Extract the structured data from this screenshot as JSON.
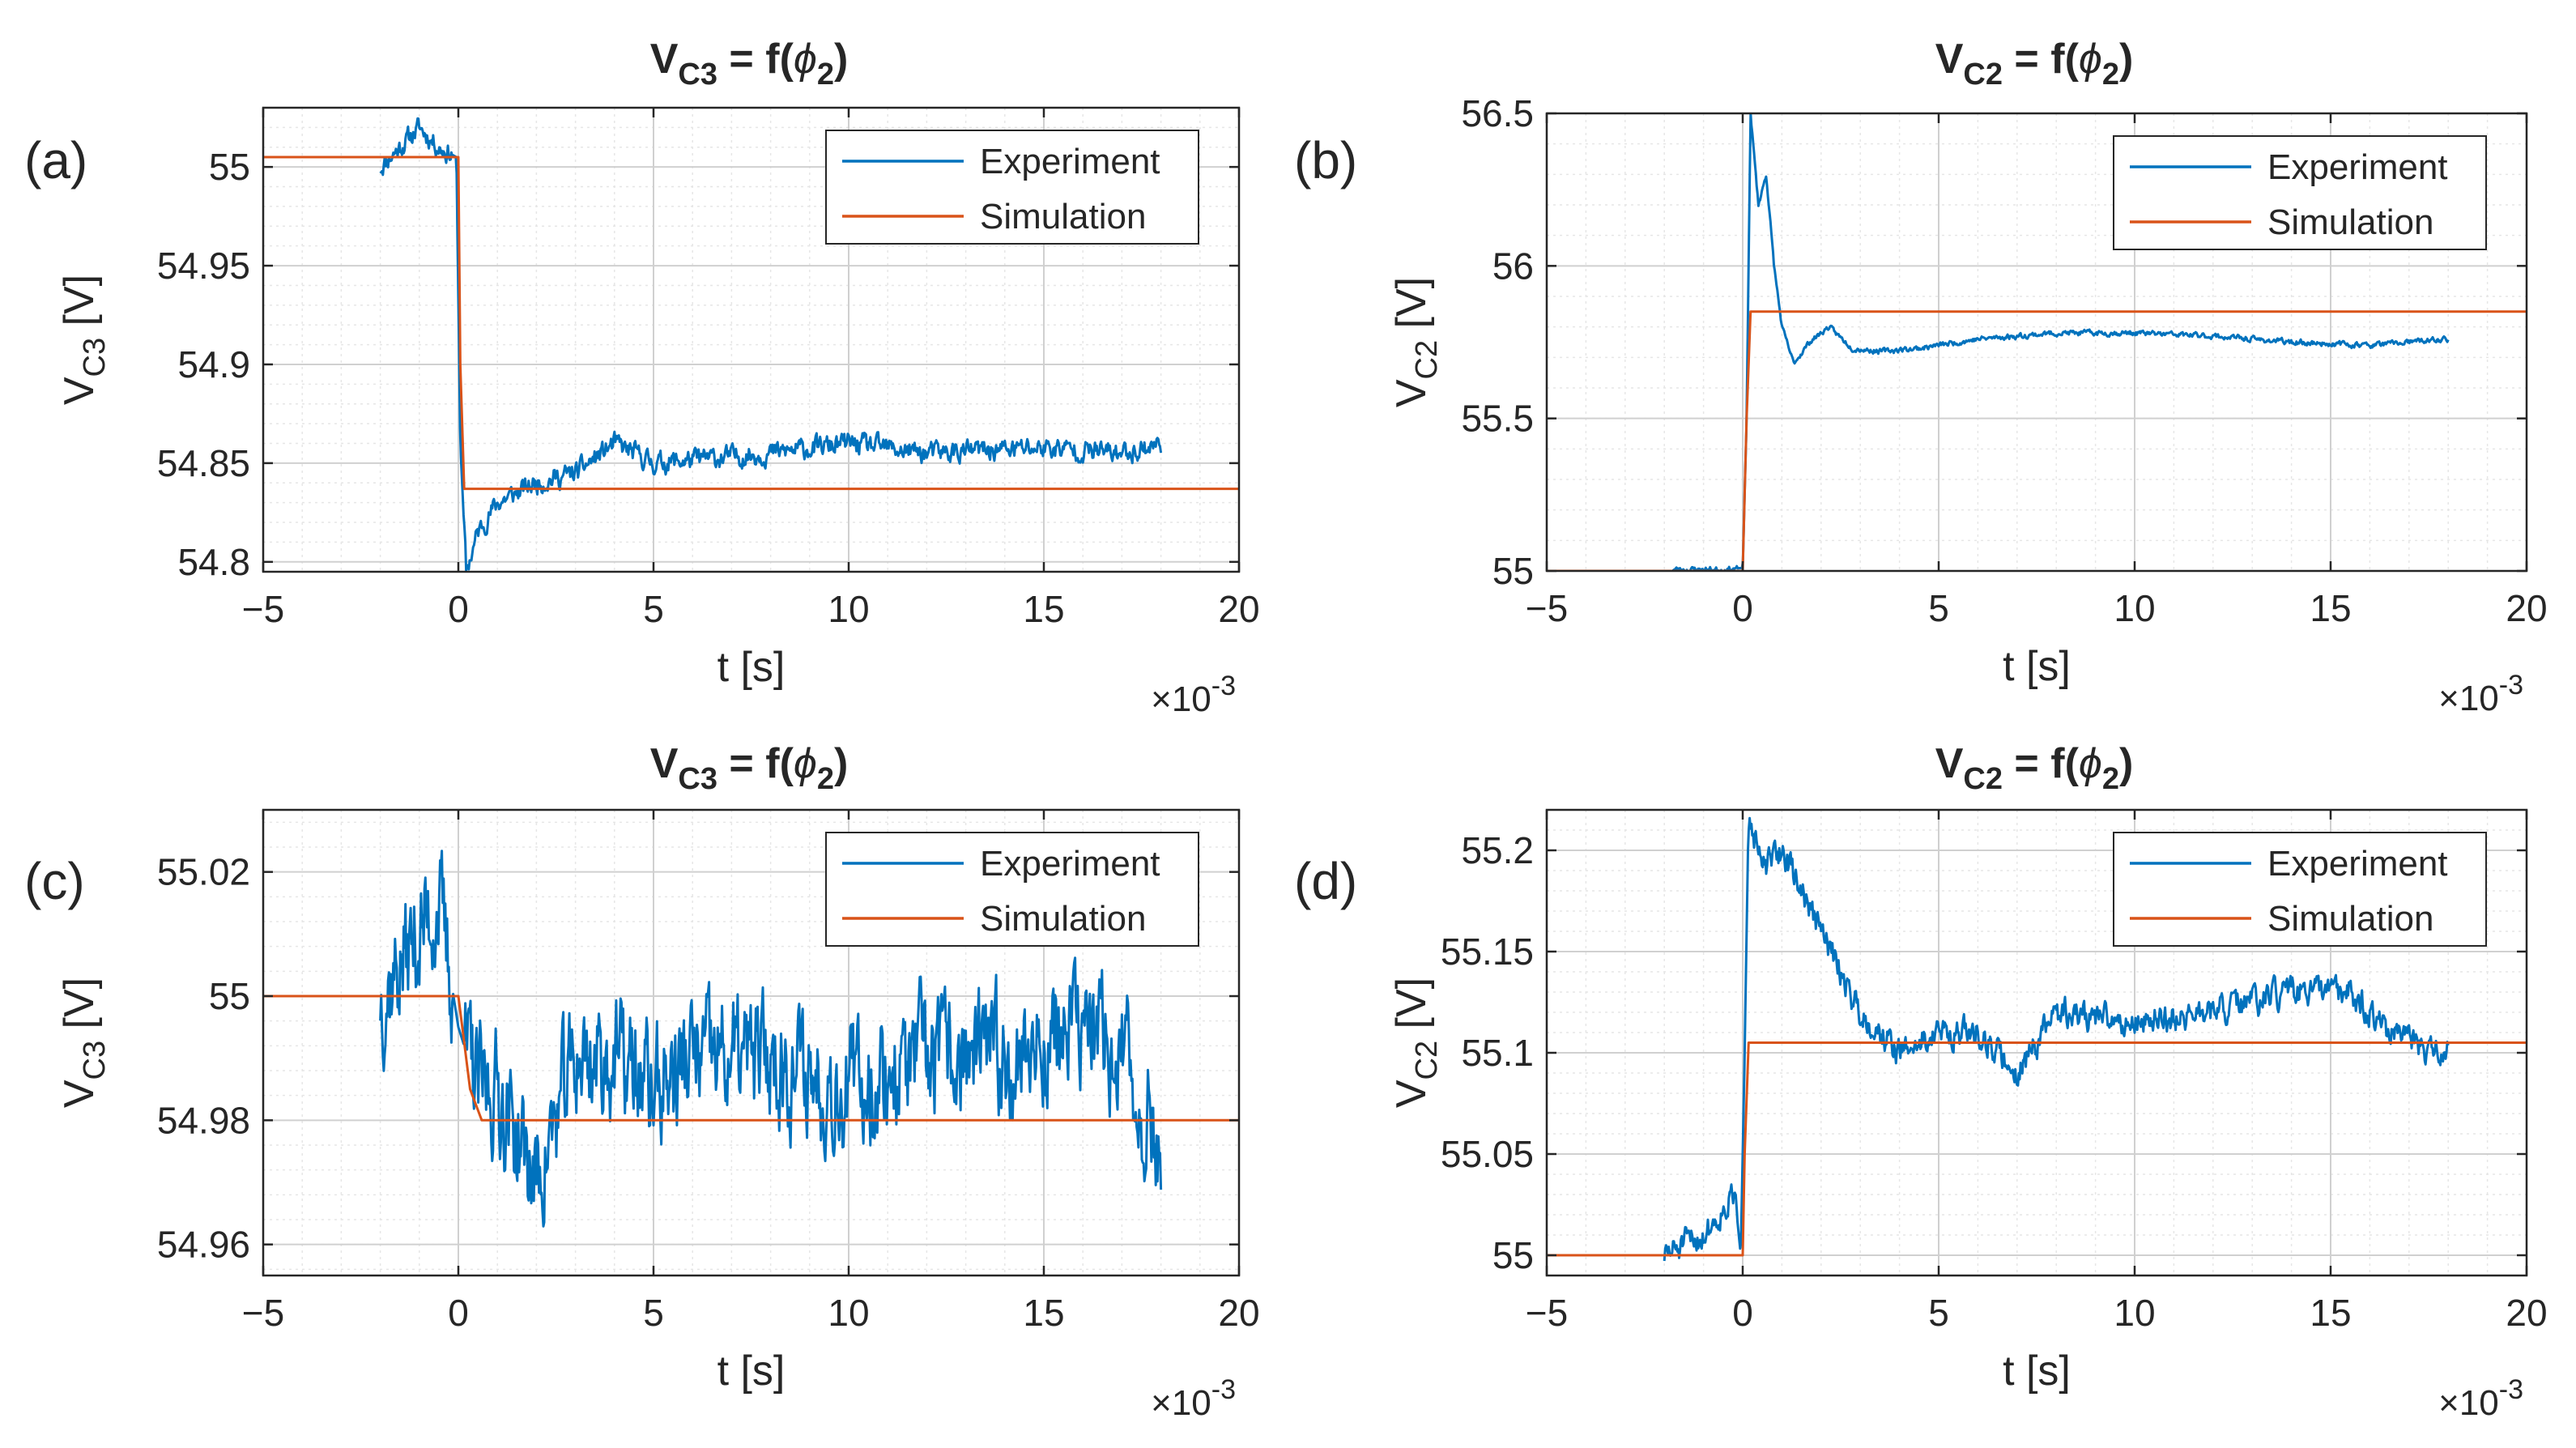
{
  "chart_data": [
    {
      "type": "line",
      "panel_label": "(a)",
      "title_main": "V",
      "title_sub": "C3",
      "title_rest": " = f(",
      "title_phi": "ϕ",
      "title_phi_sub": "2",
      "title_close": ")",
      "xlabel": "t [s]",
      "ylabel_main": "V",
      "ylabel_sub": "C3",
      "ylabel_unit": " [V]",
      "x_multiplier": "×10",
      "x_multiplier_exp": "-3",
      "xlim": [
        -5,
        20
      ],
      "ylim": [
        54.795,
        55.03
      ],
      "xticks": [
        -5,
        0,
        5,
        10,
        15,
        20
      ],
      "xtick_labels": [
        "−5",
        "0",
        "5",
        "10",
        "15",
        "20"
      ],
      "yticks": [
        54.8,
        54.85,
        54.9,
        54.95,
        55
      ],
      "ytick_labels": [
        "54.8",
        "54.85",
        "54.9",
        "54.95",
        "55"
      ],
      "legend_position": "top-right",
      "series": [
        {
          "name": "Experiment",
          "color": "#0072BD",
          "kind": "noisy",
          "points": [
            [
              -2,
              55.0
            ],
            [
              -1.5,
              55.01
            ],
            [
              -1,
              55.02
            ],
            [
              -0.5,
              55.01
            ],
            [
              -0.05,
              55.005
            ],
            [
              0.05,
              54.86
            ],
            [
              0.2,
              54.795
            ],
            [
              0.5,
              54.815
            ],
            [
              1,
              54.83
            ],
            [
              2,
              54.84
            ],
            [
              3,
              54.845
            ],
            [
              4,
              54.86
            ],
            [
              5,
              54.85
            ],
            [
              8,
              54.855
            ],
            [
              10,
              54.86
            ],
            [
              12,
              54.855
            ],
            [
              15,
              54.858
            ],
            [
              17,
              54.855
            ],
            [
              18,
              54.86
            ]
          ],
          "noise": 0.006,
          "seed": 11
        },
        {
          "name": "Simulation",
          "color": "#D95319",
          "kind": "clean",
          "points": [
            [
              -5,
              55.005
            ],
            [
              0,
              55.005
            ],
            [
              0.05,
              54.9
            ],
            [
              0.15,
              54.837
            ],
            [
              20,
              54.837
            ]
          ]
        }
      ]
    },
    {
      "type": "line",
      "panel_label": "(b)",
      "title_main": "V",
      "title_sub": "C2",
      "title_rest": " = f(",
      "title_phi": "ϕ",
      "title_phi_sub": "2",
      "title_close": ")",
      "xlabel": "t [s]",
      "ylabel_main": "V",
      "ylabel_sub": "C2",
      "ylabel_unit": " [V]",
      "x_multiplier": "×10",
      "x_multiplier_exp": "-3",
      "xlim": [
        -5,
        20
      ],
      "ylim": [
        55.0,
        56.5
      ],
      "xticks": [
        -5,
        0,
        5,
        10,
        15,
        20
      ],
      "xtick_labels": [
        "−5",
        "0",
        "5",
        "10",
        "15",
        "20"
      ],
      "yticks": [
        55,
        55.5,
        56,
        56.5
      ],
      "ytick_labels": [
        "55",
        "55.5",
        "56",
        "56.5"
      ],
      "legend_position": "top-right",
      "series": [
        {
          "name": "Experiment",
          "color": "#0072BD",
          "kind": "noisy",
          "points": [
            [
              -1.8,
              55.005
            ],
            [
              -0.5,
              55.005
            ],
            [
              0,
              55.01
            ],
            [
              0.1,
              55.5
            ],
            [
              0.2,
              56.5
            ],
            [
              0.4,
              56.2
            ],
            [
              0.6,
              56.3
            ],
            [
              0.8,
              56.0
            ],
            [
              1.0,
              55.8
            ],
            [
              1.3,
              55.68
            ],
            [
              1.7,
              55.75
            ],
            [
              2.2,
              55.8
            ],
            [
              2.8,
              55.73
            ],
            [
              3.5,
              55.72
            ],
            [
              4.5,
              55.73
            ],
            [
              6,
              55.76
            ],
            [
              8,
              55.78
            ],
            [
              10,
              55.78
            ],
            [
              12,
              55.77
            ],
            [
              14,
              55.75
            ],
            [
              16,
              55.74
            ],
            [
              18,
              55.76
            ]
          ],
          "noise": 0.01,
          "seed": 23
        },
        {
          "name": "Simulation",
          "color": "#D95319",
          "kind": "clean",
          "points": [
            [
              -5,
              55.0
            ],
            [
              0,
              55.0
            ],
            [
              0.1,
              55.5
            ],
            [
              0.2,
              55.85
            ],
            [
              20,
              55.85
            ]
          ]
        }
      ]
    },
    {
      "type": "line",
      "panel_label": "(c)",
      "title_main": "V",
      "title_sub": "C3",
      "title_rest": " = f(",
      "title_phi": "ϕ",
      "title_phi_sub": "2",
      "title_close": ")",
      "xlabel": "t [s]",
      "ylabel_main": "V",
      "ylabel_sub": "C3",
      "ylabel_unit": " [V]",
      "x_multiplier": "×10",
      "x_multiplier_exp": "-3",
      "xlim": [
        -5,
        20
      ],
      "ylim": [
        54.955,
        55.03
      ],
      "xticks": [
        -5,
        0,
        5,
        10,
        15,
        20
      ],
      "xtick_labels": [
        "−5",
        "0",
        "5",
        "10",
        "15",
        "20"
      ],
      "yticks": [
        54.96,
        54.98,
        55,
        55.02
      ],
      "ytick_labels": [
        "54.96",
        "54.98",
        "55",
        "55.02"
      ],
      "legend_position": "top-right",
      "series": [
        {
          "name": "Experiment",
          "color": "#0072BD",
          "kind": "noisy",
          "points": [
            [
              -2,
              55.0
            ],
            [
              -1.5,
              55.005
            ],
            [
              -1,
              55.01
            ],
            [
              -0.5,
              55.015
            ],
            [
              0,
              54.995
            ],
            [
              0.5,
              54.985
            ],
            [
              1,
              54.985
            ],
            [
              2,
              54.97
            ],
            [
              3,
              54.99
            ],
            [
              4,
              54.99
            ],
            [
              5,
              54.985
            ],
            [
              6,
              54.99
            ],
            [
              8,
              54.99
            ],
            [
              10,
              54.985
            ],
            [
              12,
              54.99
            ],
            [
              14,
              54.99
            ],
            [
              16,
              54.995
            ],
            [
              17,
              54.99
            ],
            [
              18,
              54.975
            ]
          ],
          "noise": 0.011,
          "seed": 37
        },
        {
          "name": "Simulation",
          "color": "#D95319",
          "kind": "clean",
          "points": [
            [
              -5,
              55.0
            ],
            [
              0,
              55.0
            ],
            [
              0.3,
              54.985
            ],
            [
              0.6,
              54.98
            ],
            [
              20,
              54.98
            ]
          ]
        }
      ]
    },
    {
      "type": "line",
      "panel_label": "(d)",
      "title_main": "V",
      "title_sub": "C2",
      "title_rest": " = f(",
      "title_phi": "ϕ",
      "title_phi_sub": "2",
      "title_close": ")",
      "xlabel": "t [s]",
      "ylabel_main": "V",
      "ylabel_sub": "C2",
      "ylabel_unit": " [V]",
      "x_multiplier": "×10",
      "x_multiplier_exp": "-3",
      "xlim": [
        -5,
        20
      ],
      "ylim": [
        54.99,
        55.22
      ],
      "xticks": [
        -5,
        0,
        5,
        10,
        15,
        20
      ],
      "xtick_labels": [
        "−5",
        "0",
        "5",
        "10",
        "15",
        "20"
      ],
      "yticks": [
        55,
        55.05,
        55.1,
        55.15,
        55.2
      ],
      "ytick_labels": [
        "55",
        "55.05",
        "55.1",
        "55.15",
        "55.2"
      ],
      "legend_position": "top-right",
      "series": [
        {
          "name": "Experiment",
          "color": "#0072BD",
          "kind": "noisy",
          "points": [
            [
              -2,
              55.0
            ],
            [
              -1,
              55.01
            ],
            [
              -0.2,
              55.03
            ],
            [
              -0.05,
              55.0
            ],
            [
              0.05,
              55.1
            ],
            [
              0.15,
              55.22
            ],
            [
              0.5,
              55.19
            ],
            [
              1,
              55.2
            ],
            [
              1.5,
              55.18
            ],
            [
              2,
              55.16
            ],
            [
              2.5,
              55.14
            ],
            [
              3,
              55.12
            ],
            [
              4,
              55.1
            ],
            [
              5,
              55.11
            ],
            [
              6,
              55.11
            ],
            [
              7,
              55.09
            ],
            [
              8,
              55.12
            ],
            [
              10,
              55.115
            ],
            [
              12,
              55.12
            ],
            [
              14,
              55.13
            ],
            [
              15.5,
              55.13
            ],
            [
              16.5,
              55.11
            ],
            [
              17.5,
              55.1
            ],
            [
              18,
              55.1
            ]
          ],
          "noise": 0.008,
          "seed": 51
        },
        {
          "name": "Simulation",
          "color": "#D95319",
          "kind": "clean",
          "points": [
            [
              -5,
              55.0
            ],
            [
              0,
              55.0
            ],
            [
              0.05,
              55.05
            ],
            [
              0.15,
              55.105
            ],
            [
              20,
              55.105
            ]
          ]
        }
      ]
    }
  ]
}
